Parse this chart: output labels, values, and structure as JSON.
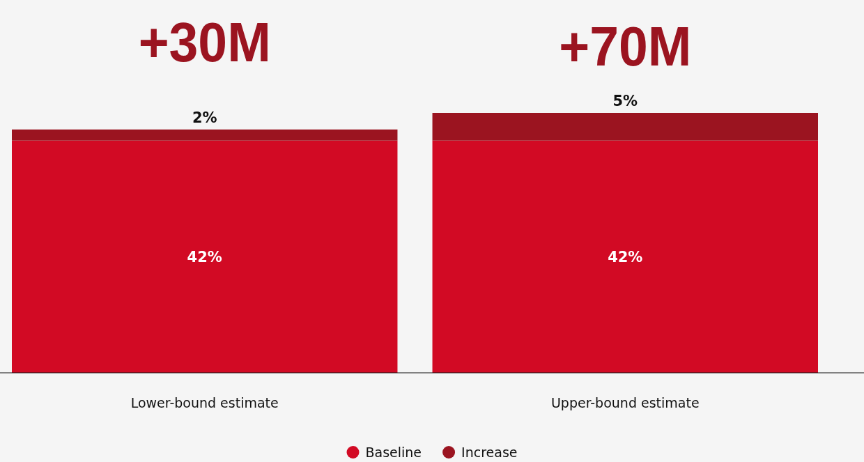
{
  "chart_data": {
    "type": "bar",
    "stacked": true,
    "categories": [
      "Lower-bound estimate",
      "Upper-bound estimate"
    ],
    "series": [
      {
        "name": "Baseline",
        "color": "#d20a24",
        "values": [
          42,
          42
        ],
        "value_labels": [
          "42%",
          "42%"
        ]
      },
      {
        "name": "Increase",
        "color": "#9b1420",
        "values": [
          2,
          5
        ],
        "value_labels": [
          "2%",
          "5%"
        ]
      }
    ],
    "legend": "bottom",
    "annotations": [
      "+30M",
      "+70M"
    ]
  }
}
